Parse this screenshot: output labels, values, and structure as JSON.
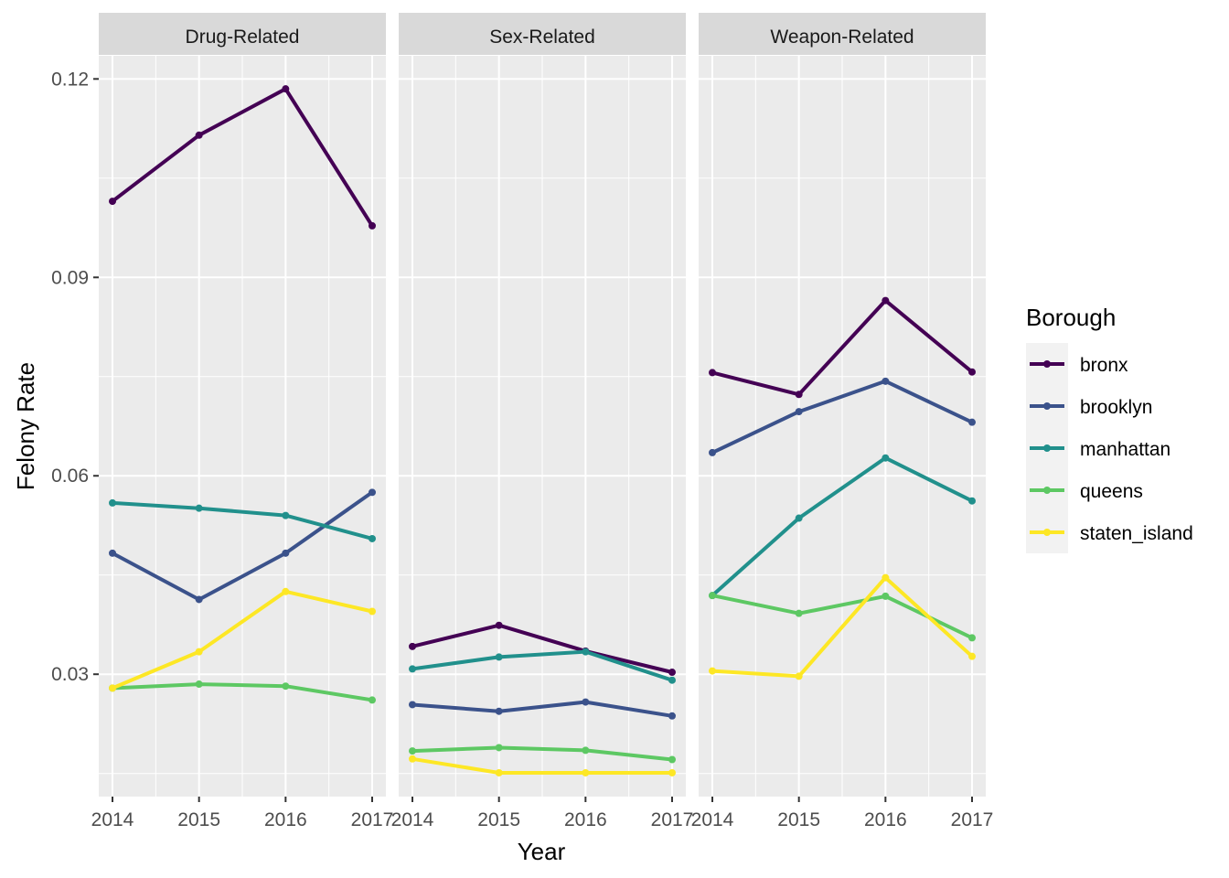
{
  "chart_data": {
    "type": "line",
    "facet_variable_panels": [
      "Drug-Related",
      "Sex-Related",
      "Weapon-Related"
    ],
    "x": [
      2014,
      2015,
      2016,
      2017
    ],
    "x_tick_labels": [
      "2014",
      "2015",
      "2016",
      "2017"
    ],
    "y_tick_labels": [
      "0.03",
      "0.06",
      "0.09",
      "0.12"
    ],
    "y_ticks": [
      0.03,
      0.06,
      0.09,
      0.12
    ],
    "ylim": [
      0.0115,
      0.1235
    ],
    "xlabel": "Year",
    "ylabel": "Felony Rate",
    "legend_title": "Borough",
    "legend_position": "right",
    "grid": true,
    "panel_background": "#ebebeb",
    "strip_background": "#d9d9d9",
    "series": [
      {
        "name": "bronx",
        "color": "#440154",
        "values": {
          "Drug-Related": [
            0.1015,
            0.1115,
            0.1185,
            0.0978
          ],
          "Sex-Related": [
            0.0342,
            0.0374,
            0.0335,
            0.0303
          ],
          "Weapon-Related": [
            0.0756,
            0.0723,
            0.0865,
            0.0757
          ]
        }
      },
      {
        "name": "brooklyn",
        "color": "#3b528b",
        "values": {
          "Drug-Related": [
            0.0483,
            0.0413,
            0.0483,
            0.0575
          ],
          "Sex-Related": [
            0.0254,
            0.0244,
            0.0258,
            0.0237
          ],
          "Weapon-Related": [
            0.0635,
            0.0697,
            0.0743,
            0.0681
          ]
        }
      },
      {
        "name": "manhattan",
        "color": "#21908c",
        "values": {
          "Drug-Related": [
            0.0559,
            0.0551,
            0.054,
            0.0505
          ],
          "Sex-Related": [
            0.0308,
            0.0326,
            0.0334,
            0.0291
          ],
          "Weapon-Related": [
            0.0419,
            0.0536,
            0.0627,
            0.0562
          ]
        }
      },
      {
        "name": "queens",
        "color": "#5dc863",
        "values": {
          "Drug-Related": [
            0.0279,
            0.0285,
            0.0282,
            0.0261
          ],
          "Sex-Related": [
            0.0184,
            0.0189,
            0.0185,
            0.0171
          ],
          "Weapon-Related": [
            0.0419,
            0.0392,
            0.0418,
            0.0355
          ]
        }
      },
      {
        "name": "staten_island",
        "color": "#fde725",
        "values": {
          "Drug-Related": [
            0.0279,
            0.0334,
            0.0425,
            0.0395
          ],
          "Sex-Related": [
            0.0172,
            0.0151,
            0.0151,
            0.0151
          ],
          "Weapon-Related": [
            0.0305,
            0.0297,
            0.0446,
            0.0327
          ]
        }
      }
    ]
  }
}
